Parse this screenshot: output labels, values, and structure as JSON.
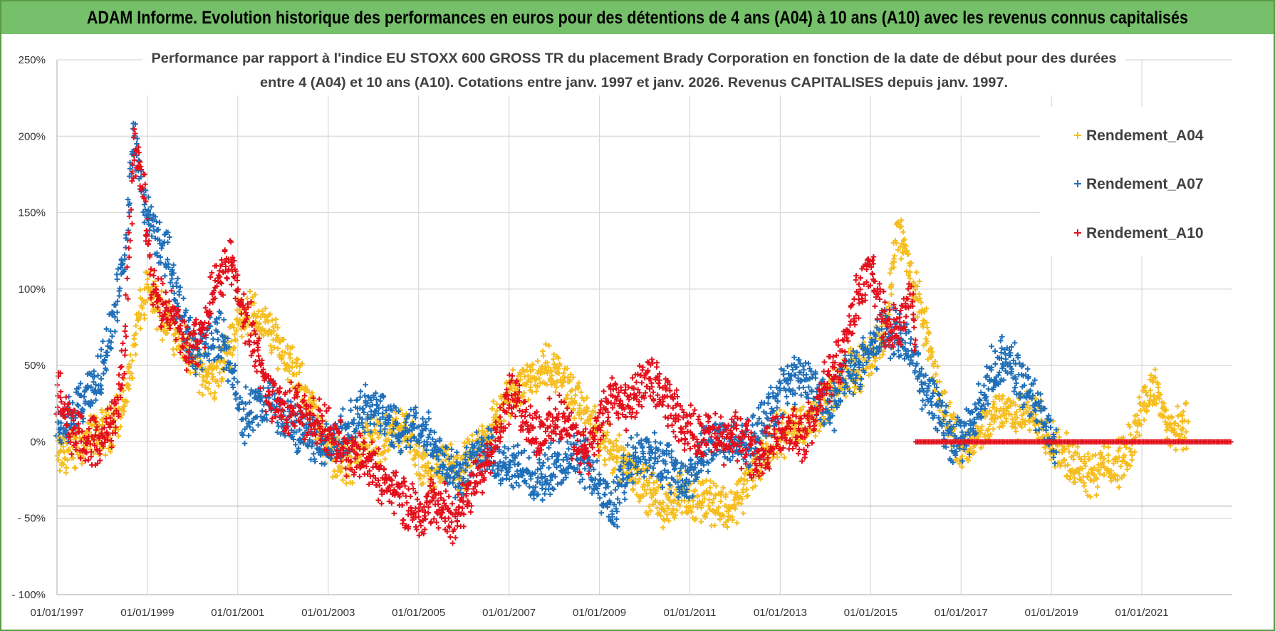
{
  "banner": {
    "title": "ADAM Informe. Evolution historique des performances en euros pour des détentions de 4 ans (A04) à 10 ans (A10) avec les revenus connus capitalisés"
  },
  "colors": {
    "banner_bg": "#76c06b",
    "grid": "#d9d9d9",
    "A04": "#f5bd1f",
    "A07": "#1f6fb8",
    "A10": "#e3101c"
  },
  "chart_data": {
    "type": "scatter",
    "title_lines": [
      "Performance par rapport à l'indice EU STOXX 600 GROSS TR  du placement Brady Corporation en fonction de la date de début pour des durées",
      "entre 4 (A04) et 10 ans (A10).  Cotations entre janv. 1997 et janv. 2026. Revenus CAPITALISES  depuis janv. 1997."
    ],
    "xlabel": "",
    "ylabel": "",
    "x_range": [
      1997.0,
      2023.0
    ],
    "ylim": [
      -100,
      250
    ],
    "y_ticks": [
      "250%",
      "200%",
      "150%",
      "100%",
      "50%",
      "0%",
      "- 50%",
      "- 100%"
    ],
    "y_tick_values": [
      250,
      200,
      150,
      100,
      50,
      0,
      -50,
      -100
    ],
    "x_ticks": [
      "01/01/1997",
      "01/01/1999",
      "01/01/2001",
      "01/01/2003",
      "01/01/2005",
      "01/01/2007",
      "01/01/2009",
      "01/01/2011",
      "01/01/2013",
      "01/01/2015",
      "01/01/2017",
      "01/01/2019",
      "01/01/2021"
    ],
    "x_tick_values": [
      1997,
      1999,
      2001,
      2003,
      2005,
      2007,
      2009,
      2011,
      2013,
      2015,
      2017,
      2019,
      2021
    ],
    "marker": "+",
    "legend_position": "top-right",
    "series": [
      {
        "name": "Rendement_A04",
        "x_end": 2022.0,
        "x": [
          1997.0,
          1997.3,
          1997.6,
          1997.9,
          1998.2,
          1998.4,
          1998.6,
          1998.8,
          1999.0,
          1999.3,
          1999.6,
          1999.9,
          2000.2,
          2000.5,
          2000.8,
          2001.0,
          2001.3,
          2001.6,
          2001.9,
          2002.2,
          2002.5,
          2002.8,
          2003.0,
          2003.3,
          2003.6,
          2003.9,
          2004.2,
          2004.5,
          2004.8,
          2005.0,
          2005.3,
          2005.6,
          2005.9,
          2006.2,
          2006.5,
          2006.8,
          2007.0,
          2007.3,
          2007.6,
          2007.9,
          2008.2,
          2008.5,
          2008.8,
          2009.0,
          2009.3,
          2009.6,
          2009.9,
          2010.2,
          2010.5,
          2010.8,
          2011.0,
          2011.3,
          2011.6,
          2011.9,
          2012.2,
          2012.5,
          2012.8,
          2013.0,
          2013.3,
          2013.6,
          2013.9,
          2014.2,
          2014.5,
          2014.8,
          2015.0,
          2015.3,
          2015.6,
          2015.9,
          2016.2,
          2016.5,
          2016.8,
          2017.0,
          2017.3,
          2017.6,
          2017.9,
          2018.2,
          2018.5,
          2018.8,
          2019.0,
          2019.3,
          2019.6,
          2019.9,
          2020.2,
          2020.5,
          2020.8,
          2021.0,
          2021.3,
          2021.6,
          2021.9,
          2022.0
        ],
        "y": [
          -10,
          -5,
          0,
          5,
          10,
          20,
          40,
          80,
          100,
          85,
          75,
          60,
          45,
          40,
          60,
          80,
          85,
          75,
          65,
          50,
          30,
          10,
          -5,
          -15,
          -10,
          5,
          0,
          10,
          5,
          -15,
          -25,
          -15,
          -20,
          -10,
          5,
          20,
          30,
          40,
          45,
          50,
          40,
          25,
          15,
          0,
          -5,
          -15,
          -25,
          -35,
          -45,
          -30,
          -40,
          -35,
          -40,
          -45,
          -30,
          -15,
          0,
          5,
          10,
          15,
          20,
          35,
          45,
          50,
          55,
          70,
          140,
          110,
          75,
          30,
          10,
          -5,
          0,
          10,
          25,
          15,
          20,
          15,
          0,
          -10,
          -15,
          -20,
          -15,
          -15,
          0,
          25,
          35,
          10,
          5,
          15
        ]
      },
      {
        "name": "Rendement_A07",
        "x_end": 2019.1,
        "x": [
          1997.0,
          1997.3,
          1997.6,
          1997.9,
          1998.1,
          1998.3,
          1998.5,
          1998.7,
          1998.9,
          1999.1,
          1999.3,
          1999.5,
          1999.8,
          2000.0,
          2000.3,
          2000.6,
          2000.9,
          2001.1,
          2001.4,
          2001.7,
          2002.0,
          2002.3,
          2002.6,
          2002.9,
          2003.2,
          2003.5,
          2003.8,
          2004.0,
          2004.3,
          2004.6,
          2004.9,
          2005.2,
          2005.5,
          2005.8,
          2006.1,
          2006.4,
          2006.7,
          2007.0,
          2007.3,
          2007.6,
          2007.9,
          2008.2,
          2008.5,
          2008.8,
          2009.0,
          2009.3,
          2009.6,
          2009.9,
          2010.2,
          2010.5,
          2010.8,
          2011.1,
          2011.4,
          2011.7,
          2012.0,
          2012.3,
          2012.6,
          2012.9,
          2013.2,
          2013.5,
          2013.8,
          2014.1,
          2014.4,
          2014.7,
          2015.0,
          2015.3,
          2015.6,
          2015.9,
          2016.2,
          2016.5,
          2016.8,
          2017.1,
          2017.4,
          2017.7,
          2018.0,
          2018.3,
          2018.6,
          2018.9,
          2019.1
        ],
        "y": [
          10,
          15,
          25,
          40,
          60,
          90,
          120,
          200,
          160,
          140,
          130,
          115,
          80,
          60,
          65,
          70,
          45,
          15,
          25,
          30,
          15,
          10,
          5,
          -5,
          0,
          10,
          20,
          25,
          15,
          5,
          10,
          5,
          -10,
          -20,
          -15,
          -5,
          -10,
          -20,
          -15,
          -25,
          -20,
          -15,
          -5,
          -20,
          -30,
          -45,
          -20,
          -5,
          -10,
          -15,
          -25,
          -20,
          -5,
          5,
          -5,
          0,
          10,
          25,
          40,
          45,
          30,
          20,
          40,
          50,
          60,
          75,
          70,
          60,
          35,
          20,
          0,
          5,
          20,
          45,
          55,
          40,
          25,
          10,
          0
        ]
      },
      {
        "name": "Rendement_A10",
        "x_end": 2016.0,
        "x": [
          1997.0,
          1997.3,
          1997.6,
          1997.9,
          1998.1,
          1998.3,
          1998.5,
          1998.7,
          1998.9,
          1999.1,
          1999.3,
          1999.6,
          1999.9,
          2000.2,
          2000.5,
          2000.8,
          2001.1,
          2001.4,
          2001.7,
          2002.0,
          2002.3,
          2002.6,
          2002.9,
          2003.2,
          2003.5,
          2003.8,
          2004.1,
          2004.4,
          2004.7,
          2005.0,
          2005.3,
          2005.6,
          2005.9,
          2006.2,
          2006.5,
          2006.8,
          2007.0,
          2007.3,
          2007.6,
          2007.9,
          2008.2,
          2008.5,
          2008.8,
          2009.0,
          2009.3,
          2009.6,
          2009.9,
          2010.2,
          2010.5,
          2010.8,
          2011.1,
          2011.4,
          2011.7,
          2012.0,
          2012.3,
          2012.6,
          2012.9,
          2013.2,
          2013.5,
          2013.8,
          2014.1,
          2014.4,
          2014.7,
          2015.0,
          2015.3,
          2015.6,
          2015.9,
          2016.0
        ],
        "y": [
          35,
          10,
          5,
          0,
          5,
          20,
          60,
          200,
          170,
          100,
          90,
          80,
          60,
          70,
          100,
          120,
          90,
          60,
          30,
          20,
          25,
          15,
          10,
          0,
          -5,
          -10,
          -20,
          -30,
          -40,
          -45,
          -40,
          -45,
          -50,
          -30,
          -10,
          10,
          30,
          20,
          5,
          10,
          15,
          0,
          -5,
          10,
          30,
          20,
          35,
          40,
          25,
          15,
          5,
          5,
          0,
          5,
          -5,
          -10,
          5,
          10,
          0,
          20,
          45,
          55,
          95,
          115,
          80,
          70,
          95,
          65
        ]
      },
      {
        "name": "Rendement_A10 (zero line)",
        "x": [
          2016.0,
          2023.0
        ],
        "y": [
          0,
          0
        ]
      }
    ]
  }
}
